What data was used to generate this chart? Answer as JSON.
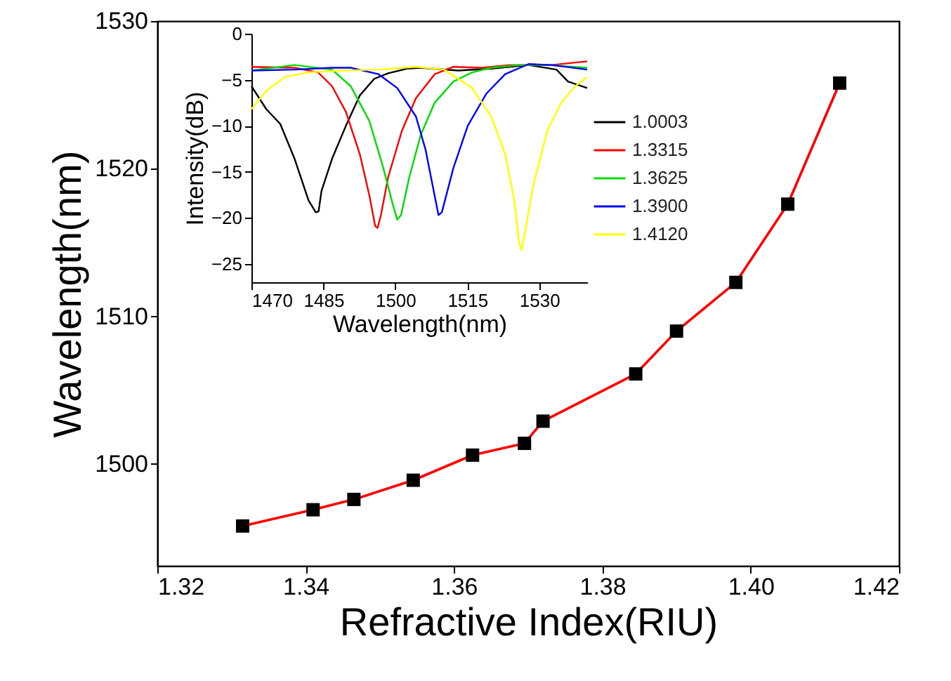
{
  "chart_data": [
    {
      "type": "line",
      "xlabel": "Refractive Index(RIU)",
      "ylabel": "Wavelength(nm)",
      "marker": "square",
      "line_style": "solid",
      "grid": false,
      "legend": false,
      "x": [
        1.3315,
        1.341,
        1.3465,
        1.3545,
        1.3625,
        1.3695,
        1.372,
        1.3845,
        1.39,
        1.398,
        1.405,
        1.412
      ],
      "series": [
        {
          "color": "#ff0000",
          "colors": [
            "#000000",
            "#000000",
            "#000000",
            "#000000",
            "#000000",
            "#000000",
            "#000000",
            "#000000",
            "#000000",
            "#000000",
            "#000000",
            "#000000"
          ],
          "values": [
            1495.8,
            1496.9,
            1497.6,
            1498.9,
            1500.6,
            1501.4,
            1502.9,
            1506.1,
            1509.0,
            1512.3,
            1517.6,
            1525.8
          ]
        }
      ],
      "xlim": [
        1.32,
        1.42
      ],
      "xticks": [
        1.32,
        1.34,
        1.36,
        1.38,
        {
          "value": 1.4,
          "label": "1.40"
        },
        1.42
      ],
      "ylim": [
        1493.1,
        1530
      ],
      "yticks": [
        1500,
        1510,
        1520,
        1530
      ]
    },
    {
      "type": "line",
      "xlabel": "Wavelength(nm)",
      "ylabel": "Intensity(dB)",
      "marker": "none",
      "line_style": "solid",
      "grid": false,
      "legend": "right",
      "xlim": [
        1470,
        1540
      ],
      "xticks": [
        1470,
        1485,
        1500,
        1515,
        1530
      ],
      "ylim": [
        -27,
        0
      ],
      "yticks": [
        0,
        -5,
        -10,
        -15,
        -20,
        -25
      ],
      "series": [
        {
          "name": "1.0003",
          "color": "#000000",
          "x": [
            1470,
            1473.1,
            1476.0,
            1479.0,
            1481.9,
            1483.4,
            1484.0,
            1484.6,
            1486.8,
            1489.7,
            1492.6,
            1495.6,
            1498.5,
            1502.4,
            1505.3,
            1513.1,
            1520.0,
            1527.8,
            1533.6,
            1536.0,
            1540
          ],
          "values": [
            -5.7,
            -8.2,
            -9.8,
            -13.6,
            -18.1,
            -19.4,
            -19.3,
            -17.1,
            -13.6,
            -10.0,
            -6.7,
            -4.9,
            -4.3,
            -3.8,
            -3.7,
            -4.0,
            -3.8,
            -3.4,
            -3.9,
            -5.2,
            -5.9
          ]
        },
        {
          "name": "1.3315",
          "color": "#ff0000",
          "x": [
            1470,
            1479.0,
            1483.9,
            1486.8,
            1489.7,
            1492.6,
            1494.6,
            1495.8,
            1496.3,
            1497.0,
            1498.5,
            1501.4,
            1504.3,
            1508.2,
            1512.1,
            1518.0,
            1523.9,
            1532.6,
            1540
          ],
          "values": [
            -3.6,
            -3.7,
            -4.2,
            -5.7,
            -8.5,
            -13.1,
            -17.6,
            -20.9,
            -21.1,
            -19.7,
            -15.6,
            -10.5,
            -7.0,
            -4.4,
            -3.6,
            -3.7,
            -3.4,
            -3.4,
            -3.0
          ]
        },
        {
          "name": "1.3625",
          "color": "#00dd00",
          "x": [
            1470,
            1479.0,
            1486.8,
            1490.7,
            1494.6,
            1497.5,
            1499.5,
            1500.4,
            1501.2,
            1502.9,
            1505.3,
            1508.2,
            1512.1,
            1516.0,
            1520.0,
            1525.8,
            1531.7,
            1540
          ],
          "values": [
            -4.0,
            -3.4,
            -3.9,
            -5.7,
            -9.5,
            -14.6,
            -18.6,
            -20.2,
            -19.7,
            -15.6,
            -11.0,
            -7.5,
            -5.2,
            -4.2,
            -3.7,
            -3.4,
            -3.4,
            -3.7
          ]
        },
        {
          "name": "1.3900",
          "color": "#0000ff",
          "x": [
            1470,
            1479.0,
            1486.8,
            1490.7,
            1496.5,
            1500.4,
            1504.3,
            1506.3,
            1508.2,
            1509.0,
            1509.7,
            1512.1,
            1515.1,
            1519.0,
            1522.9,
            1527.8,
            1532.6,
            1540
          ],
          "values": [
            -4.0,
            -3.9,
            -3.7,
            -3.7,
            -4.4,
            -5.9,
            -9.0,
            -12.6,
            -17.6,
            -19.7,
            -19.4,
            -14.6,
            -10.0,
            -6.5,
            -4.4,
            -3.3,
            -3.4,
            -3.9
          ]
        },
        {
          "name": "1.4120",
          "color": "#ffff00",
          "x": [
            1470,
            1473.1,
            1477.0,
            1481.9,
            1488.7,
            1496.5,
            1504.3,
            1510.2,
            1516.0,
            1520.0,
            1522.9,
            1524.8,
            1525.8,
            1526.3,
            1527.0,
            1528.7,
            1531.7,
            1534.6,
            1537.5,
            1540
          ],
          "values": [
            -8.2,
            -6.2,
            -4.7,
            -4.2,
            -4.0,
            -3.9,
            -3.6,
            -3.9,
            -5.9,
            -9.0,
            -13.1,
            -18.1,
            -22.7,
            -23.5,
            -21.7,
            -16.6,
            -10.5,
            -7.5,
            -5.7,
            -4.7
          ]
        }
      ]
    }
  ]
}
